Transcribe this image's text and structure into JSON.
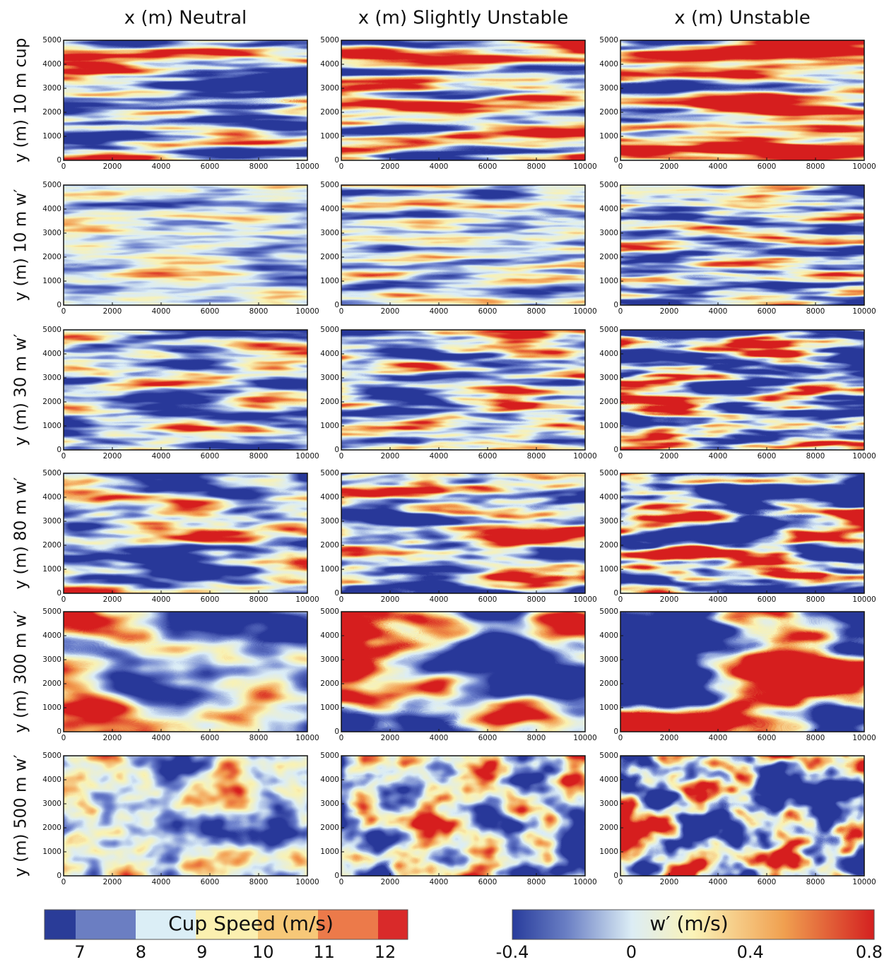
{
  "column_titles": [
    "x (m) Neutral",
    "x (m) Slightly Unstable",
    "x (m) Unstable"
  ],
  "row_labels": [
    "y (m) 10 m cup",
    "y (m) 10 m w′",
    "y (m) 30 m w′",
    "y (m) 80 m w′",
    "y (m) 300 m w′",
    "y (m) 500 m w′"
  ],
  "panel_axes": {
    "xlim": [
      0,
      10000
    ],
    "ylim": [
      0,
      5000
    ],
    "xticks": [
      0,
      2000,
      4000,
      6000,
      8000,
      10000
    ],
    "yticks": [
      0,
      1000,
      2000,
      3000,
      4000,
      5000
    ]
  },
  "colorbars": [
    {
      "label": "Cup Speed (m/s)",
      "ticks": [
        7,
        8,
        9,
        10,
        11,
        12
      ]
    },
    {
      "label": "w′ (m/s)",
      "ticks": [
        -0.4,
        0,
        0.4,
        0.8
      ]
    }
  ]
}
